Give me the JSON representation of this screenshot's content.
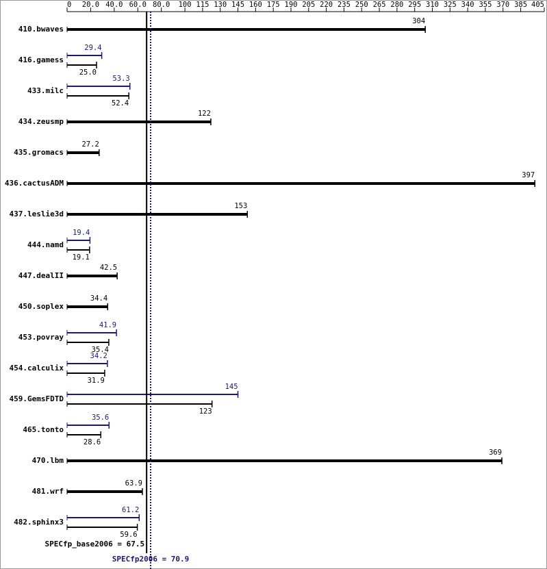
{
  "chart_data": {
    "type": "bar",
    "categories": [
      "410.bwaves",
      "416.gamess",
      "433.milc",
      "434.zeusmp",
      "435.gromacs",
      "436.cactusADM",
      "437.leslie3d",
      "444.namd",
      "447.dealII",
      "450.soplex",
      "453.povray",
      "454.calculix",
      "459.GemsFDTD",
      "465.tonto",
      "470.lbm",
      "481.wrf",
      "482.sphinx3"
    ],
    "series": [
      {
        "color": "#000000",
        "values": [
          304,
          25.0,
          52.4,
          122,
          27.2,
          397,
          153,
          19.1,
          42.5,
          34.4,
          35.4,
          31.9,
          123,
          28.6,
          369,
          63.9,
          59.6
        ],
        "value_labels": [
          "304",
          "25.0",
          "52.4",
          "122",
          "27.2",
          "397",
          "153",
          "19.1",
          "42.5",
          "34.4",
          "35.4",
          "31.9",
          "123",
          "28.6",
          "369",
          "63.9",
          "59.6"
        ]
      },
      {
        "color": "#191970",
        "values": [
          null,
          29.4,
          53.3,
          null,
          null,
          null,
          null,
          19.4,
          null,
          null,
          41.9,
          34.2,
          145,
          35.6,
          null,
          null,
          61.2
        ],
        "value_labels": [
          null,
          "29.4",
          "53.3",
          null,
          null,
          null,
          null,
          "19.4",
          null,
          null,
          "41.9",
          "34.2",
          "145",
          "35.6",
          null,
          null,
          "61.2"
        ]
      }
    ],
    "xlim": [
      0,
      405
    ],
    "xticks": [
      0,
      {
        "value": 20,
        "label": "20.0"
      },
      {
        "value": 40,
        "label": "40.0"
      },
      {
        "value": 60,
        "label": "60.0"
      },
      {
        "value": 80,
        "label": "80.0"
      },
      100,
      115,
      130,
      145,
      160,
      175,
      190,
      205,
      220,
      235,
      250,
      265,
      280,
      295,
      310,
      325,
      340,
      355,
      370,
      385,
      405
    ],
    "reference_lines": [
      {
        "label": "SPECfp_base2006 = 67.5",
        "value": 67.5,
        "color": "#000000",
        "style": "solid"
      },
      {
        "label": "SPECfp2006 = 70.9",
        "value": 70.9,
        "color": "#191970",
        "style": "dotted"
      }
    ]
  }
}
